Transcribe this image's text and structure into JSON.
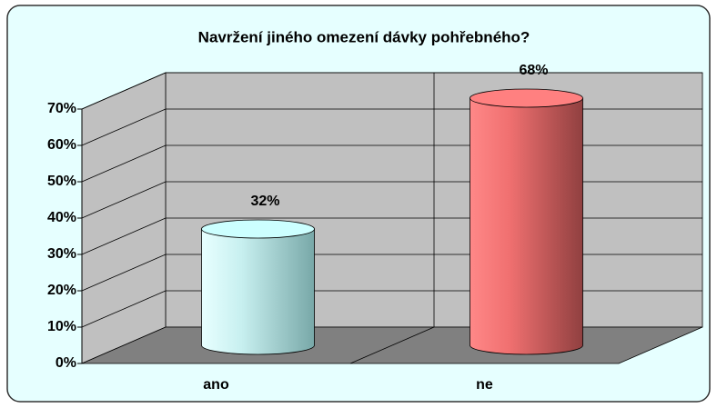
{
  "chart_data": {
    "type": "bar",
    "title": "Navržení jiného omezení dávky pohřebného?",
    "categories": [
      "ano",
      "ne"
    ],
    "values": [
      32,
      68
    ],
    "value_labels": [
      "32%",
      "68%"
    ],
    "colors": [
      "#ccffff",
      "#ff8080"
    ],
    "ylim": [
      0,
      70
    ],
    "yticks": [
      {
        "value": 0,
        "label": "0%"
      },
      {
        "value": 10,
        "label": "10%"
      },
      {
        "value": 20,
        "label": "20%"
      },
      {
        "value": 30,
        "label": "30%"
      },
      {
        "value": 40,
        "label": "40%"
      },
      {
        "value": 50,
        "label": "50%"
      },
      {
        "value": 60,
        "label": "60%"
      },
      {
        "value": 70,
        "label": "70%"
      }
    ],
    "grid": true
  }
}
